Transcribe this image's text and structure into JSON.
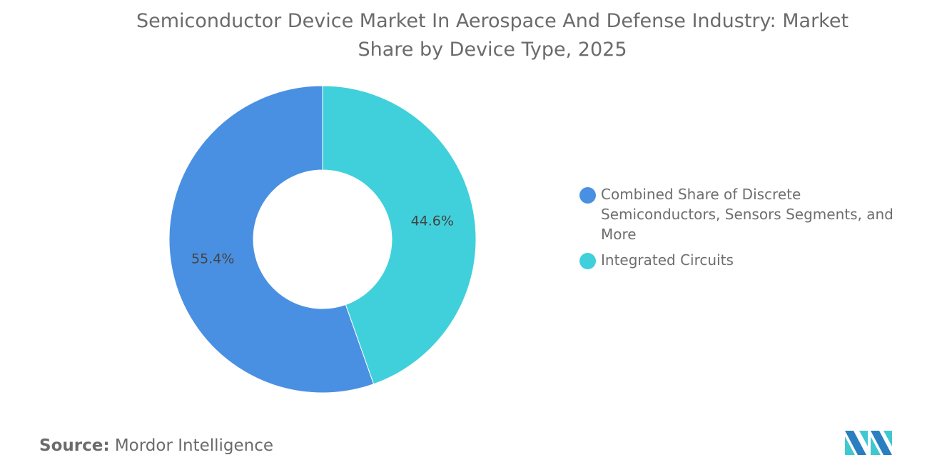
{
  "title_lines": [
    "Semiconductor Device Market In Aerospace And Defense Industry: Market",
    "Share by Device Type, 2025"
  ],
  "chart_data": {
    "type": "pie",
    "donut": true,
    "title": "Semiconductor Device Market In Aerospace And Defense Industry: Market Share by Device Type, 2025",
    "legend_position": "right",
    "series": [
      {
        "name": "Integrated Circuits",
        "value": 44.6,
        "label": "44.6%",
        "color": "#40d0db"
      },
      {
        "name": "Combined Share of Discrete Semiconductors, Sensors Segments, and More",
        "value": 55.4,
        "label": "55.4%",
        "color": "#4a90e2"
      }
    ]
  },
  "legend": [
    {
      "label": "Combined Share of Discrete Semiconductors, Sensors Segments, and More",
      "color": "#4a90e2"
    },
    {
      "label": "Integrated Circuits",
      "color": "#40d0db"
    }
  ],
  "source": {
    "label": "Source:",
    "value": "Mordor Intelligence"
  },
  "logo_text": "Mordor Intelligence"
}
